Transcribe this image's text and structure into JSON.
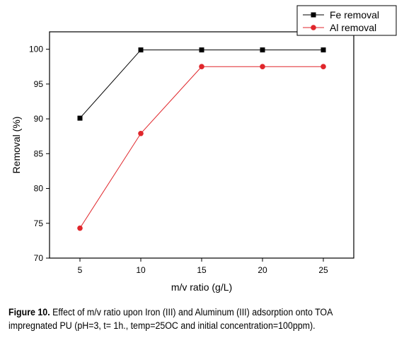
{
  "chart_data": {
    "type": "line",
    "x": [
      5,
      10,
      15,
      20,
      25
    ],
    "series": [
      {
        "name": "Fe removal",
        "values": [
          90.1,
          99.9,
          99.9,
          99.9,
          99.9
        ],
        "color": "#000000",
        "marker": "square"
      },
      {
        "name": "Al removal",
        "values": [
          74.3,
          87.9,
          97.5,
          97.5,
          97.5
        ],
        "color": "#e0262b",
        "marker": "circle"
      }
    ],
    "xlabel": "m/v ratio (g/L)",
    "ylabel": "Removal (%)",
    "xlim": [
      2.5,
      27.5
    ],
    "ylim": [
      70,
      102.5
    ],
    "xticks": [
      5,
      10,
      15,
      20,
      25
    ],
    "yticks": [
      70,
      75,
      80,
      85,
      90,
      95,
      100
    ],
    "grid": false,
    "legend_position": "top-right"
  },
  "caption": {
    "label": "Figure 10.",
    "line1": " Effect of m/v ratio upon Iron (III) and Aluminum (III) adsorption onto TOA",
    "line2": "impregnated PU (pH=3, t= 1h., temp=25OC and initial concentration=100ppm)."
  }
}
